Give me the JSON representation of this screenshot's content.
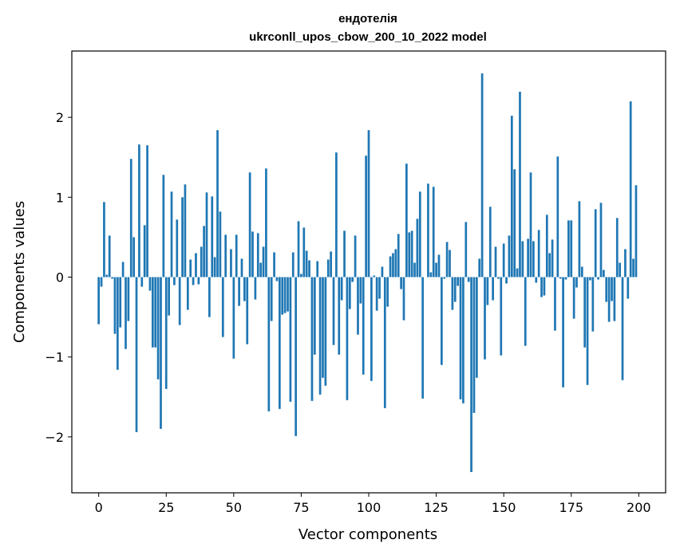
{
  "chart_data": {
    "type": "bar",
    "title_line1": "ендотелія",
    "title_line2": "ukrconll_upos_cbow_200_10_2022 model",
    "xlabel": "Vector components",
    "ylabel": "Components values",
    "xlim": [
      -9.95,
      209.95
    ],
    "ylim": [
      -2.7,
      2.83
    ],
    "xticks": [
      0,
      25,
      50,
      75,
      100,
      125,
      150,
      175,
      200
    ],
    "xtick_labels": [
      "0",
      "25",
      "50",
      "75",
      "100",
      "125",
      "150",
      "175",
      "200"
    ],
    "yticks": [
      -2,
      -1,
      0,
      1,
      2
    ],
    "ytick_labels": [
      "−2",
      "−1",
      "0",
      "1",
      "2"
    ],
    "bar_color": "#1f77b4",
    "grid": false,
    "values": [
      -0.59,
      -0.12,
      0.94,
      0.03,
      0.52,
      -0.02,
      -0.71,
      -1.16,
      -0.63,
      0.19,
      -0.9,
      -0.55,
      1.48,
      0.5,
      -1.94,
      1.66,
      -0.12,
      0.65,
      1.65,
      -0.17,
      -0.88,
      -0.88,
      -1.28,
      -1.9,
      1.28,
      -1.4,
      -0.48,
      1.07,
      -0.1,
      0.72,
      -0.6,
      1.0,
      1.16,
      -0.41,
      0.22,
      -0.1,
      0.3,
      -0.09,
      0.38,
      0.64,
      1.06,
      -0.5,
      1.01,
      0.25,
      1.84,
      0.82,
      -0.75,
      0.53,
      0.0,
      0.35,
      -1.02,
      0.53,
      -0.36,
      0.23,
      -0.3,
      -0.84,
      1.31,
      0.57,
      -0.28,
      0.55,
      0.18,
      0.38,
      1.36,
      -1.68,
      -0.55,
      0.31,
      -0.05,
      -1.65,
      -0.47,
      -0.45,
      -0.43,
      -1.56,
      0.31,
      -1.99,
      0.7,
      0.04,
      0.62,
      0.33,
      0.21,
      -1.55,
      -0.97,
      0.2,
      -1.47,
      -1.26,
      -1.36,
      0.22,
      0.32,
      -0.85,
      1.56,
      -0.97,
      -0.29,
      0.58,
      -1.54,
      -0.4,
      -0.06,
      0.52,
      -0.72,
      -0.33,
      -1.22,
      1.52,
      1.84,
      -1.3,
      0.02,
      -0.42,
      -0.27,
      0.13,
      -1.64,
      -0.37,
      0.26,
      0.3,
      0.35,
      0.54,
      -0.15,
      -0.54,
      1.42,
      0.56,
      0.58,
      0.18,
      0.73,
      1.07,
      -1.52,
      0.0,
      1.17,
      0.06,
      1.13,
      0.18,
      0.28,
      -1.1,
      -0.02,
      0.44,
      0.34,
      -0.41,
      -0.31,
      -0.11,
      -1.53,
      -1.58,
      0.69,
      -0.06,
      -2.44,
      -1.7,
      -1.26,
      0.23,
      2.55,
      -1.03,
      -0.35,
      0.88,
      -0.29,
      0.38,
      -0.02,
      -0.98,
      0.42,
      -0.08,
      0.52,
      2.02,
      1.35,
      0.11,
      2.32,
      0.45,
      -0.86,
      0.48,
      1.31,
      0.45,
      -0.07,
      0.59,
      -0.25,
      -0.23,
      0.78,
      0.3,
      0.47,
      -0.67,
      1.51,
      -0.02,
      -1.38,
      -0.03,
      0.71,
      0.71,
      -0.52,
      -0.13,
      0.95,
      0.13,
      -0.88,
      -1.35,
      -0.04,
      -0.68,
      0.85,
      -0.03,
      0.93,
      0.09,
      -0.31,
      -0.56,
      -0.3,
      -0.55,
      0.74,
      0.18,
      -1.29,
      0.35,
      -0.27,
      2.2,
      0.23,
      1.15
    ]
  }
}
